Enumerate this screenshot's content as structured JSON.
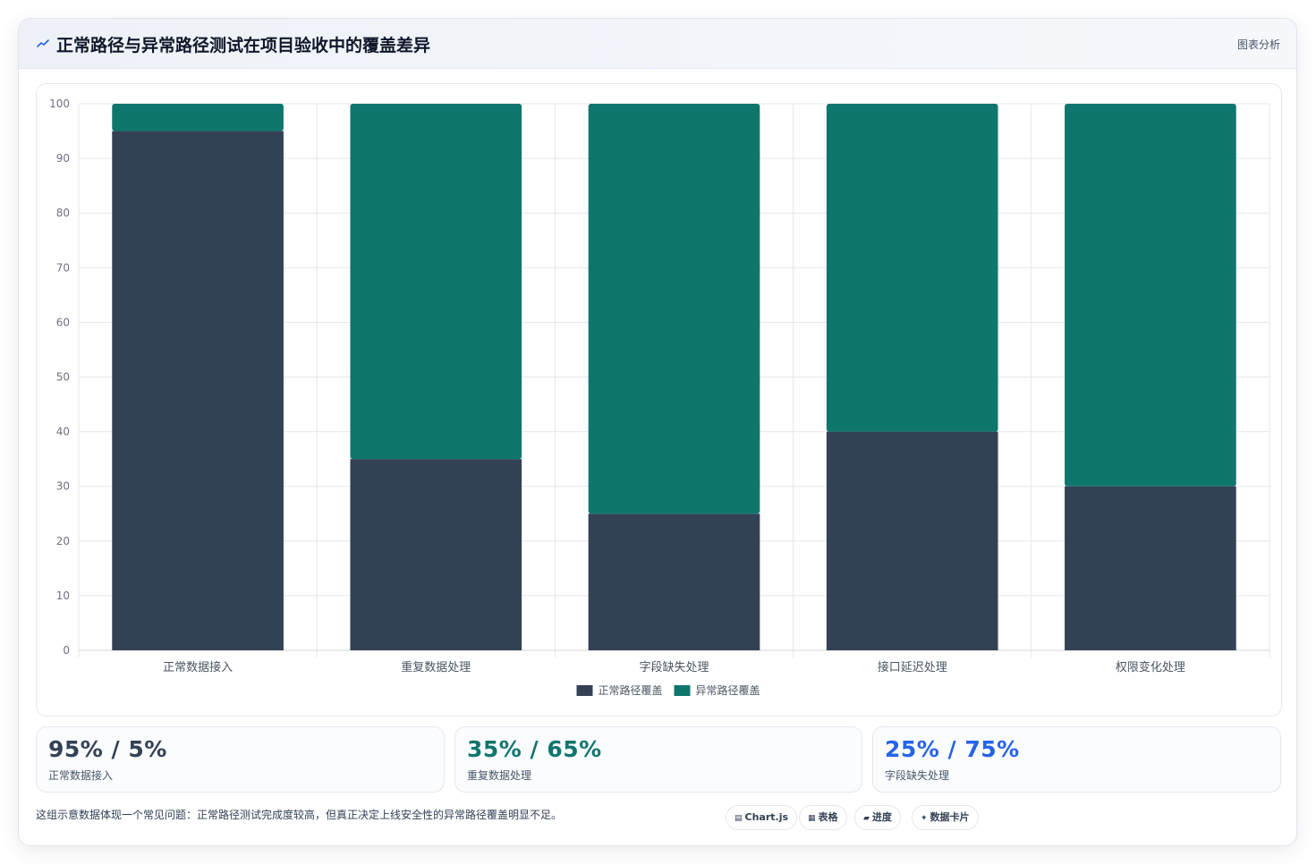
{
  "header": {
    "title": "正常路径与异常路径测试在项目验收中的覆盖差异",
    "tag": "图表分析",
    "icon": "trend-icon"
  },
  "chart_data": {
    "type": "bar",
    "stacked": true,
    "categories": [
      "正常数据接入",
      "重复数据处理",
      "字段缺失处理",
      "接口延迟处理",
      "权限变化处理"
    ],
    "series": [
      {
        "name": "正常路径覆盖",
        "values": [
          95,
          35,
          25,
          40,
          30
        ],
        "color": "#334155"
      },
      {
        "name": "异常路径覆盖",
        "values": [
          5,
          65,
          75,
          60,
          70
        ],
        "color": "#0f766e"
      }
    ],
    "title": "",
    "xlabel": "",
    "ylabel": "",
    "ylim": [
      0,
      100
    ],
    "yticks": [
      0,
      10,
      20,
      30,
      40,
      50,
      60,
      70,
      80,
      90,
      100
    ],
    "grid": true,
    "legend": "bottom-center"
  },
  "stats": [
    {
      "value": "95% / 5%",
      "label": "正常数据接入",
      "color": "#334155"
    },
    {
      "value": "35% / 65%",
      "label": "重复数据处理",
      "color": "#0f766e"
    },
    {
      "value": "25% / 75%",
      "label": "字段缺失处理",
      "color": "#2563eb"
    }
  ],
  "note": "这组示意数据体现一个常见问题：正常路径测试完成度较高，但真正决定上线安全性的异常路径覆盖明显不足。",
  "chips": [
    {
      "icon": "▤",
      "label": "Chart.js",
      "icon_name": "chart-icon"
    },
    {
      "icon": "▦",
      "label": "表格",
      "icon_name": "table-icon"
    },
    {
      "icon": "▰",
      "label": "进度",
      "icon_name": "progress-icon"
    },
    {
      "icon": "✦",
      "label": "数据卡片",
      "icon_name": "card-icon"
    }
  ]
}
